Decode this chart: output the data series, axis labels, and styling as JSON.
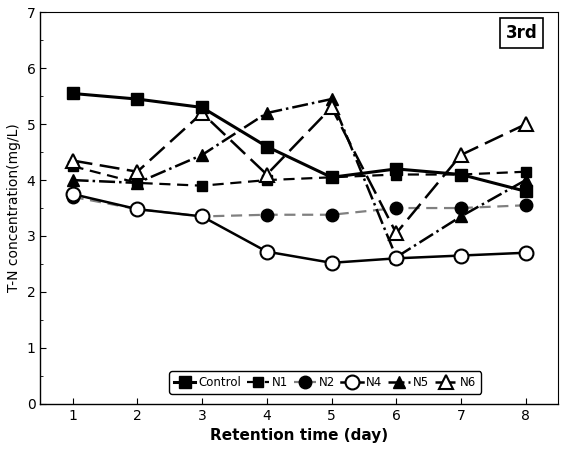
{
  "x": [
    1,
    2,
    3,
    4,
    5,
    6,
    7,
    8
  ],
  "Control": [
    5.55,
    5.45,
    5.3,
    4.6,
    4.05,
    4.2,
    4.1,
    3.8
  ],
  "N1": [
    4.25,
    3.95,
    3.9,
    4.0,
    4.05,
    4.1,
    4.1,
    4.15
  ],
  "N2": [
    3.7,
    3.48,
    3.35,
    3.38,
    3.38,
    3.5,
    3.5,
    3.55
  ],
  "N4": [
    3.75,
    3.48,
    3.35,
    2.72,
    2.52,
    2.6,
    2.65,
    2.7
  ],
  "N5": [
    4.0,
    3.95,
    4.45,
    5.2,
    5.45,
    2.62,
    3.35,
    4.0
  ],
  "N6": [
    4.35,
    4.15,
    5.2,
    4.1,
    5.3,
    3.05,
    4.45,
    5.0
  ],
  "title": "3rd",
  "xlabel": "Retention time (day)",
  "ylabel": "T-N concentration(mg/L)",
  "ylim": [
    0,
    7
  ],
  "yticks": [
    0,
    1,
    2,
    3,
    4,
    5,
    6,
    7
  ],
  "xticks": [
    1,
    2,
    3,
    4,
    5,
    6,
    7,
    8
  ]
}
